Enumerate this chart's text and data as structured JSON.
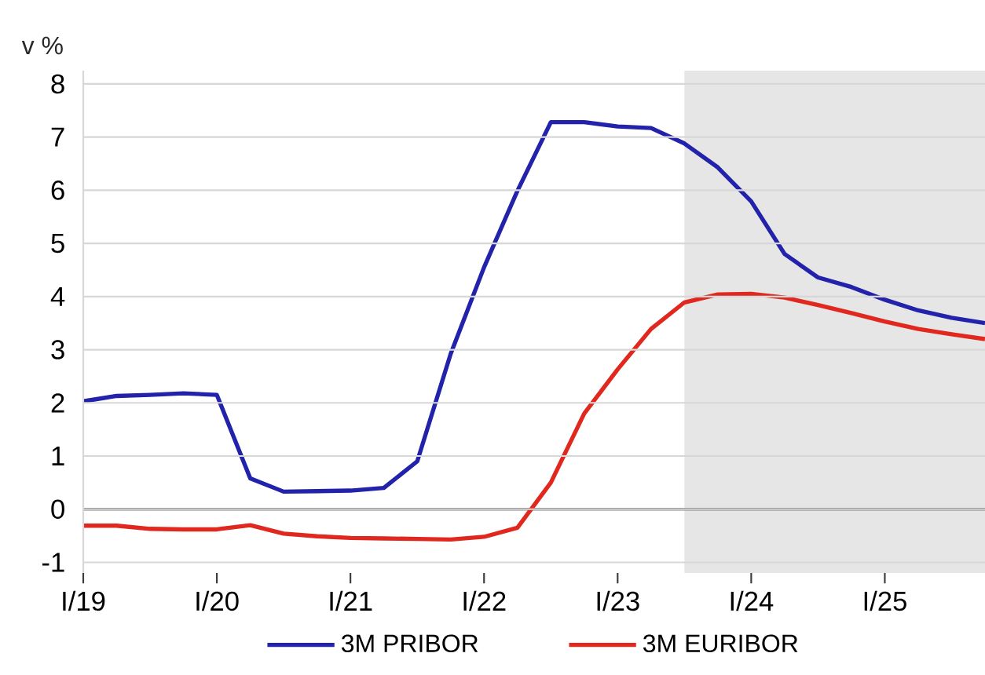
{
  "chart_data": {
    "type": "line",
    "ylabel": "v %",
    "x": [
      "2019-01",
      "2019-04",
      "2019-07",
      "2019-10",
      "2020-01",
      "2020-04",
      "2020-07",
      "2020-10",
      "2021-01",
      "2021-04",
      "2021-07",
      "2021-10",
      "2022-01",
      "2022-04",
      "2022-07",
      "2022-10",
      "2023-01",
      "2023-04",
      "2023-07",
      "2023-10",
      "2024-01",
      "2024-04",
      "2024-07",
      "2024-10",
      "2025-01",
      "2025-04",
      "2025-07",
      "2025-10"
    ],
    "series": [
      {
        "name": "3M PRIBOR",
        "color": "#2222aa",
        "values": [
          2.03,
          2.13,
          2.15,
          2.18,
          2.15,
          0.58,
          0.33,
          0.34,
          0.35,
          0.4,
          0.9,
          2.92,
          4.55,
          5.99,
          7.28,
          7.28,
          7.2,
          7.17,
          6.88,
          6.43,
          5.79,
          4.8,
          4.36,
          4.18,
          3.94,
          3.74,
          3.6,
          3.5
        ]
      },
      {
        "name": "3M EURIBOR",
        "color": "#e0281e",
        "values": [
          -0.31,
          -0.31,
          -0.37,
          -0.38,
          -0.38,
          -0.3,
          -0.46,
          -0.51,
          -0.54,
          -0.55,
          -0.56,
          -0.57,
          -0.52,
          -0.35,
          0.5,
          1.8,
          2.63,
          3.39,
          3.89,
          4.04,
          4.05,
          3.98,
          3.84,
          3.69,
          3.53,
          3.39,
          3.29,
          3.2
        ]
      }
    ],
    "xlim": [
      "2019-01",
      "2025-10"
    ],
    "xticks": [
      {
        "value": "2019-01",
        "label": "I/19"
      },
      {
        "value": "2020-01",
        "label": "I/20"
      },
      {
        "value": "2021-01",
        "label": "I/21"
      },
      {
        "value": "2022-01",
        "label": "I/22"
      },
      {
        "value": "2023-01",
        "label": "I/23"
      },
      {
        "value": "2024-01",
        "label": "I/24"
      },
      {
        "value": "2025-01",
        "label": "I/25"
      }
    ],
    "ylim": [
      -1.2,
      8.25
    ],
    "yticks": [
      -1,
      0,
      1,
      2,
      3,
      4,
      5,
      6,
      7,
      8
    ],
    "ref_lines": [
      {
        "axis": "y",
        "value": 0,
        "color": "#808080"
      }
    ],
    "bands": [
      {
        "axis": "x",
        "from": "2023-07",
        "to": "2025-10",
        "color": "#e6e6e6"
      }
    ],
    "grid": "y",
    "legend": "bottom"
  }
}
